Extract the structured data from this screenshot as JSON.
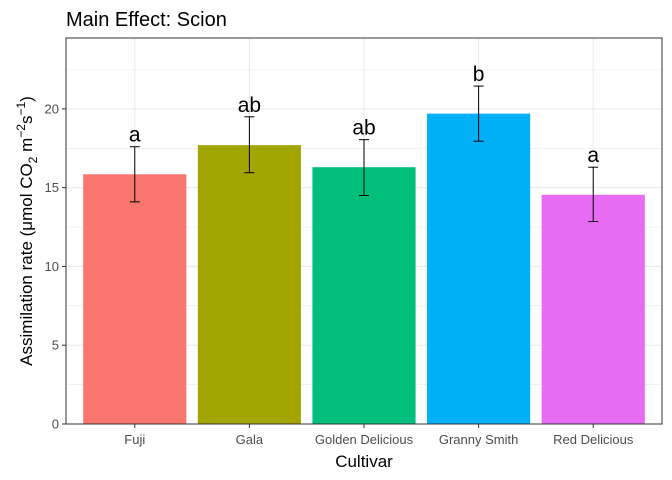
{
  "chart_data": {
    "type": "bar",
    "title": "Main Effect: Scion",
    "xlabel": "Cultivar",
    "ylabel": {
      "prefix": "Assimilation rate (μmol CO",
      "co2_sub": "2",
      "m_part": " m",
      "m_exp": "−2",
      "s_part": "s",
      "s_exp": "−1",
      "suffix": ")"
    },
    "ylim": [
      0,
      24.5
    ],
    "yticks": [
      0,
      5,
      10,
      15,
      20
    ],
    "grid": true,
    "legend": "none",
    "categories": [
      "Fuji",
      "Gala",
      "Golden Delicious",
      "Granny Smith",
      "Red Delicious"
    ],
    "values": [
      15.85,
      17.7,
      16.3,
      19.7,
      14.55
    ],
    "error_low": [
      14.1,
      15.95,
      14.5,
      17.95,
      12.85
    ],
    "error_high": [
      17.6,
      19.5,
      18.05,
      21.45,
      16.3
    ],
    "significance_labels": [
      "a",
      "ab",
      "ab",
      "b",
      "a"
    ],
    "colors": [
      "#F8766D",
      "#A3A500",
      "#00BF7D",
      "#00B0F6",
      "#E76BF3"
    ]
  }
}
